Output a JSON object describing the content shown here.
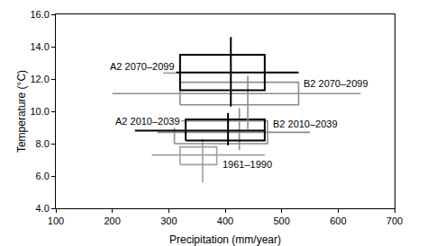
{
  "chart_data": {
    "type": "range_box",
    "x_label": "Precipitation (mm/year)",
    "y_label": "Temperature (°C)",
    "xlim": [
      100,
      700
    ],
    "xticks": [
      100,
      200,
      300,
      400,
      500,
      600,
      700
    ],
    "ylim": [
      4.0,
      16.0
    ],
    "yticks": [
      {
        "value": 4.0,
        "label": "4.0"
      },
      {
        "value": 6.0,
        "label": "6.0"
      },
      {
        "value": 8.0,
        "label": "8.0"
      },
      {
        "value": 10.0,
        "label": "10.0"
      },
      {
        "value": 12.0,
        "label": "12.0"
      },
      {
        "value": 14.0,
        "label": "14.0"
      },
      {
        "value": 16.0,
        "label": "16.0"
      }
    ],
    "grid": false,
    "series": [
      {
        "name": "1961–1990",
        "color": "#a0a0a0",
        "x_box": [
          320,
          385
        ],
        "y_box": [
          6.7,
          7.8
        ],
        "x": 360,
        "y": 7.3,
        "x_range": [
          270,
          470
        ],
        "y_range": [
          5.6,
          8.3
        ]
      },
      {
        "name": "B2 2010–2039",
        "color": "#8c8c8c",
        "x_box": [
          310,
          475
        ],
        "y_box": [
          8.0,
          9.4
        ],
        "x": 425,
        "y": 8.7,
        "x_range": [
          280,
          550
        ],
        "y_range": [
          7.6,
          10.2
        ]
      },
      {
        "name": "A2 2010–2039",
        "color": "#000000",
        "x_box": [
          330,
          470
        ],
        "y_box": [
          8.2,
          9.5
        ],
        "x": 405,
        "y": 8.8,
        "x_range": [
          240,
          470
        ],
        "y_range": [
          7.9,
          9.9
        ]
      },
      {
        "name": "B2 2070–2099",
        "color": "#8c8c8c",
        "x_box": [
          320,
          530
        ],
        "y_box": [
          10.4,
          11.8
        ],
        "x": 440,
        "y": 11.1,
        "x_range": [
          200,
          640
        ],
        "y_range": [
          8.9,
          12.2
        ]
      },
      {
        "name": "A2 2070–2099",
        "color": "#000000",
        "x_box": [
          320,
          470
        ],
        "y_box": [
          11.3,
          13.5
        ],
        "x": 410,
        "y": 12.4,
        "x_range": [
          290,
          530
        ],
        "y_range": [
          10.3,
          14.6
        ]
      }
    ]
  }
}
